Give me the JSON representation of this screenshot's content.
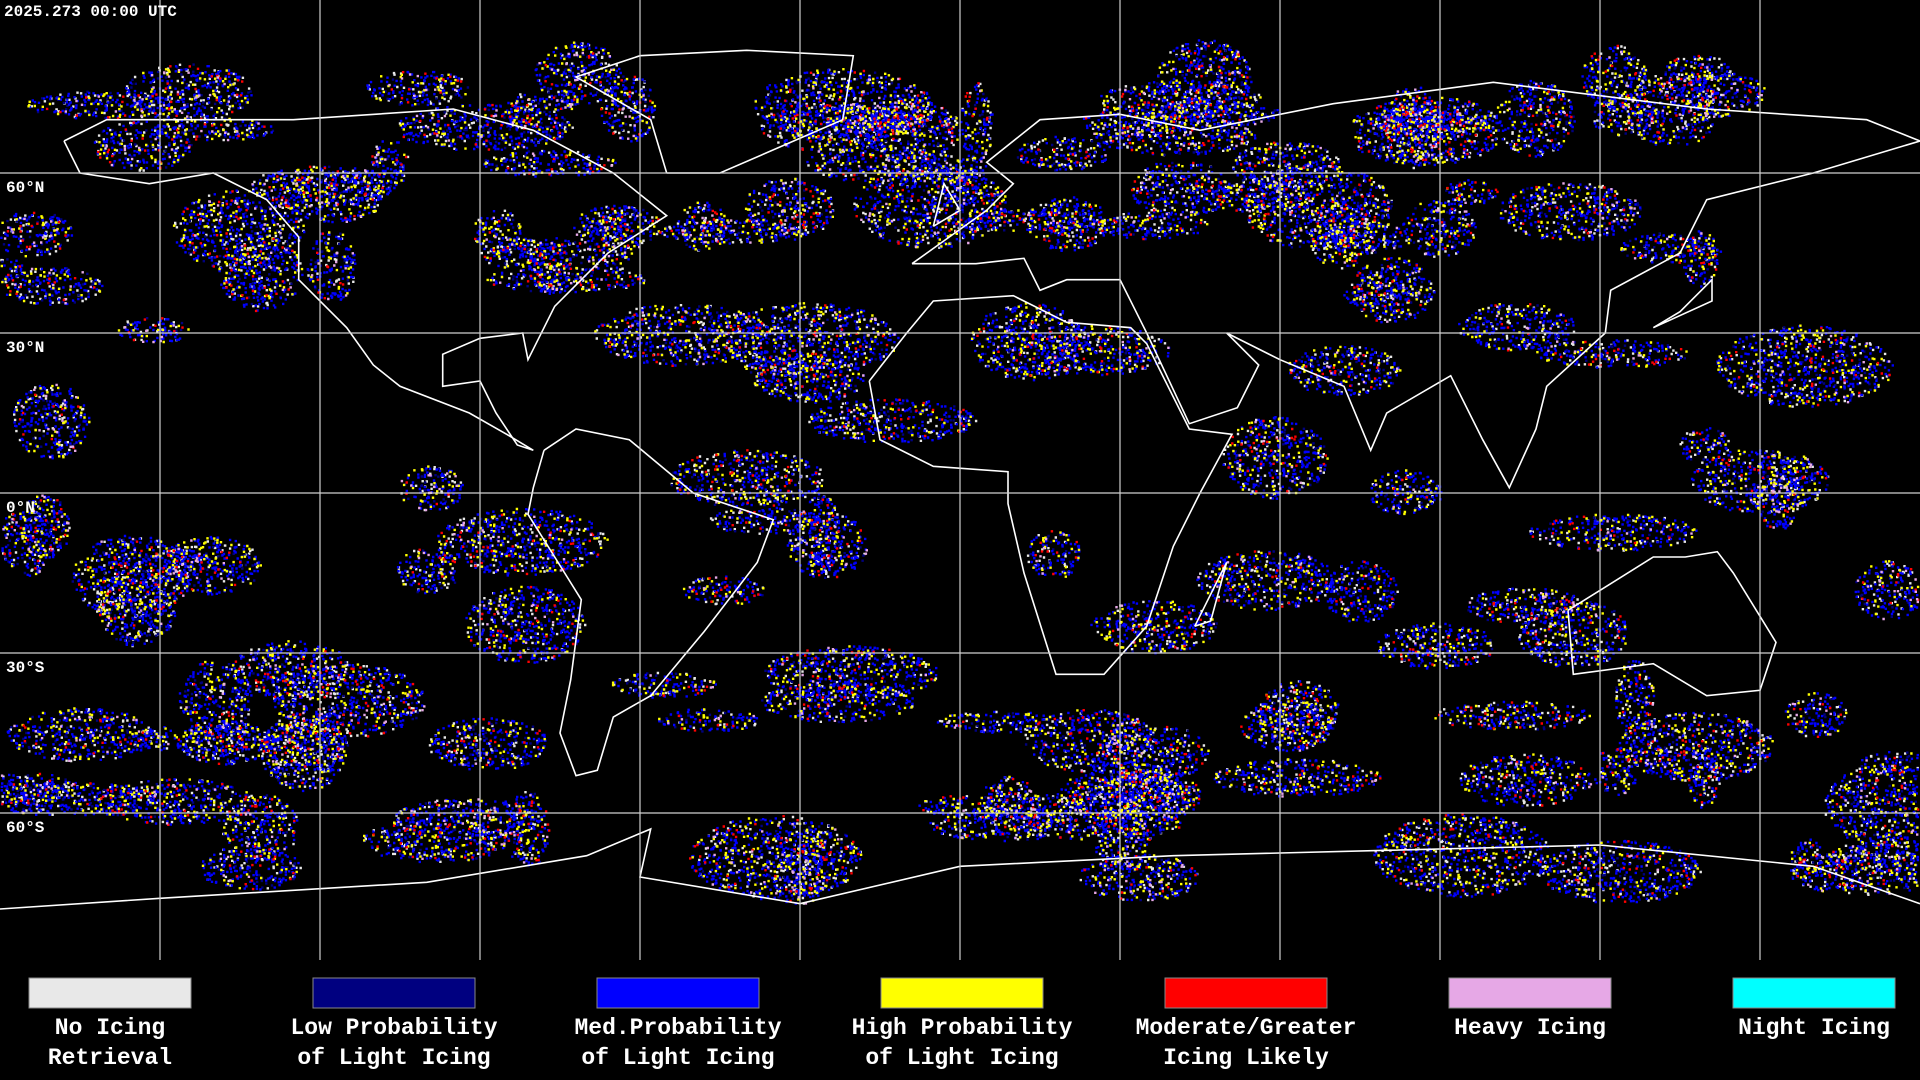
{
  "header": {
    "timestamp": "2025.273 00:00 UTC"
  },
  "map": {
    "latitude_labels": [
      "60°N",
      "30°N",
      "0°N",
      "30°S",
      "60°S"
    ]
  },
  "legend": {
    "items": [
      {
        "label": [
          "No Icing",
          "Retrieval"
        ],
        "color": "#e8e8e8"
      },
      {
        "label": [
          "Low Probability",
          "of Light Icing"
        ],
        "color": "#000080"
      },
      {
        "label": [
          "Med.Probability",
          "of Light Icing"
        ],
        "color": "#0000ff"
      },
      {
        "label": [
          "High Probability",
          "of Light Icing"
        ],
        "color": "#ffff00"
      },
      {
        "label": [
          "Moderate/Greater",
          "Icing Likely"
        ],
        "color": "#ff0000"
      },
      {
        "label": [
          "Heavy Icing"
        ],
        "color": "#e6a8e6"
      },
      {
        "label": [
          "Night Icing"
        ],
        "color": "#00ffff"
      }
    ]
  }
}
